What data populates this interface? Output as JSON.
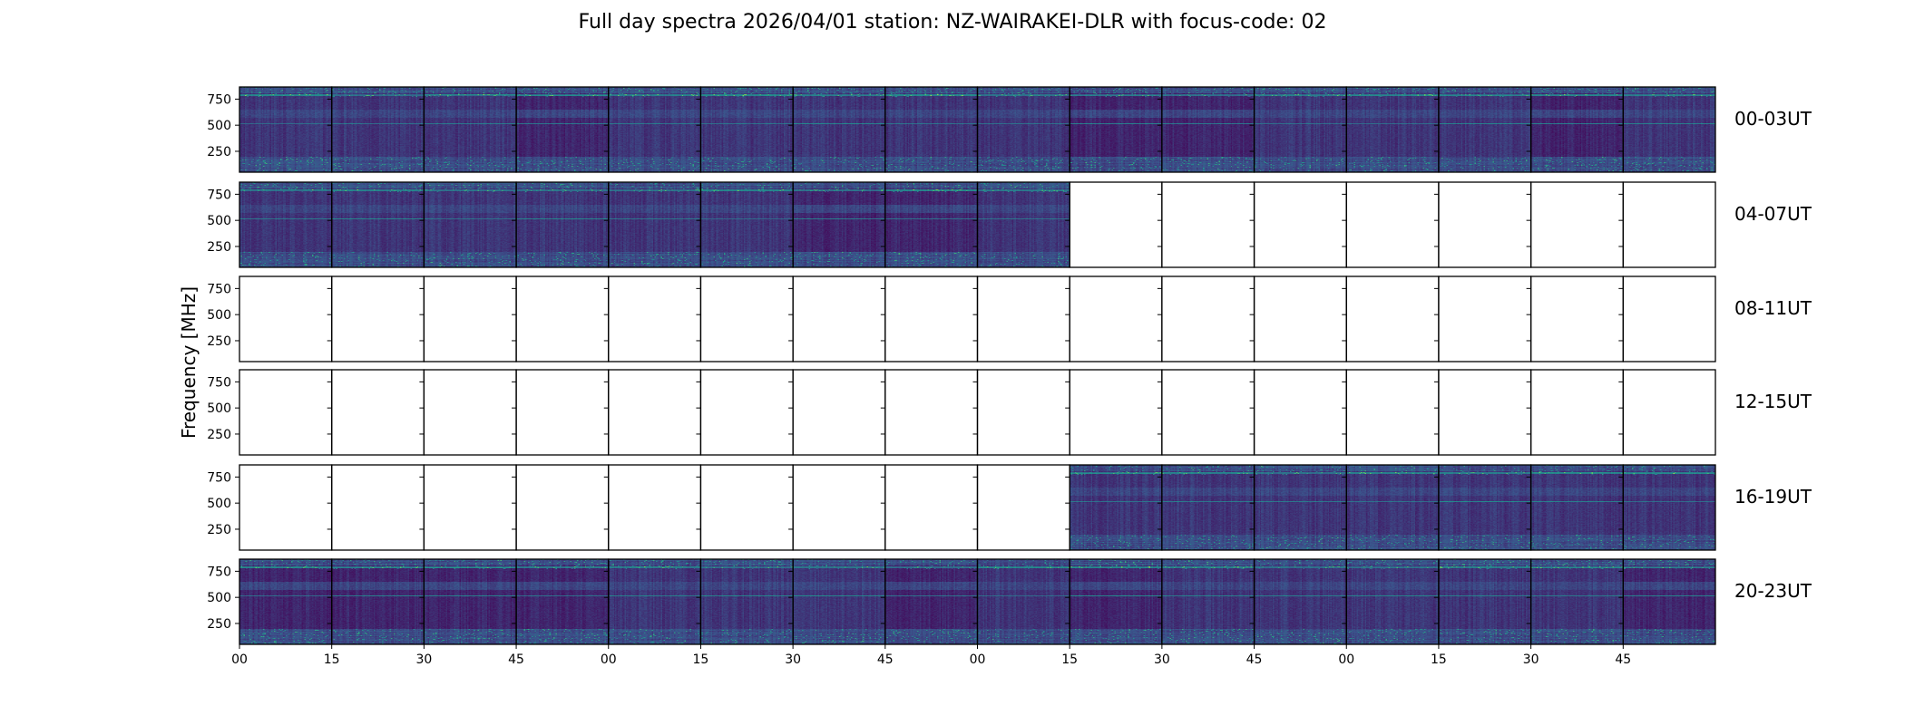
{
  "title": "Full day spectra 2026/04/01 station: NZ-WAIRAKEI-DLR with focus-code: 02",
  "chart_data": {
    "type": "heatmap",
    "title": "Full day spectra 2026/04/01 station: NZ-WAIRAKEI-DLR with focus-code: 02",
    "ylabel": "Frequency [MHz]",
    "xlabel": "",
    "ylim": [
      50,
      866
    ],
    "yticks": [
      "750",
      "500",
      "250"
    ],
    "ytick_values": [
      750,
      500,
      250
    ],
    "xticks": [
      "00",
      "15",
      "30",
      "45",
      "00",
      "15",
      "30",
      "45",
      "00",
      "15",
      "30",
      "45",
      "00",
      "15",
      "30",
      "45"
    ],
    "colormap": "viridis",
    "colormap_stops": [
      "#440154",
      "#3b528b",
      "#21918c",
      "#5ec962",
      "#fde725"
    ],
    "rows": [
      {
        "label": "00-03UT",
        "panels_with_data": [
          0,
          1,
          2,
          3,
          4,
          5,
          6,
          7,
          8,
          9,
          10,
          11,
          12,
          13,
          14,
          15
        ]
      },
      {
        "label": "04-07UT",
        "panels_with_data": [
          0,
          1,
          2,
          3,
          4,
          5,
          6,
          7,
          8
        ]
      },
      {
        "label": "08-11UT",
        "panels_with_data": []
      },
      {
        "label": "12-15UT",
        "panels_with_data": []
      },
      {
        "label": "16-19UT",
        "panels_with_data": [
          9,
          10,
          11,
          12,
          13,
          14,
          15
        ]
      },
      {
        "label": "20-23UT",
        "panels_with_data": [
          0,
          1,
          2,
          3,
          4,
          5,
          6,
          7,
          8,
          9,
          10,
          11,
          12,
          13,
          14,
          15
        ]
      }
    ],
    "spectral_bands_mhz": [
      800,
      780,
      510,
      600,
      150
    ]
  }
}
